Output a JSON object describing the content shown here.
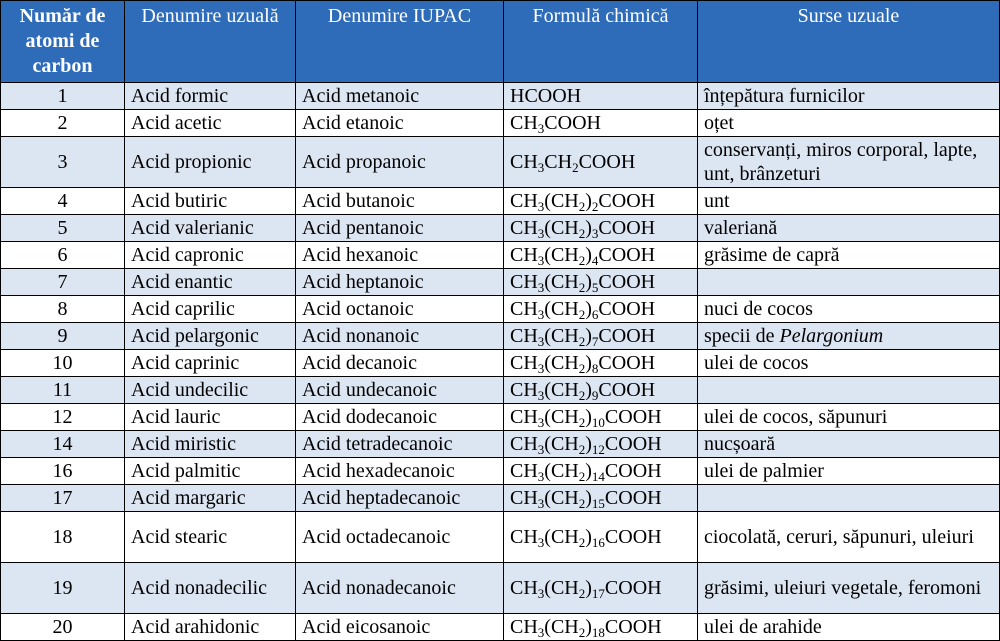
{
  "headers": {
    "carbon": "Număr de atomi de carbon",
    "common_name": "Denumire uzuală",
    "iupac_name": "Denumire IUPAC",
    "formula": "Formulă chimică",
    "sources": "Surse uzuale"
  },
  "rows": [
    {
      "n": "1",
      "common": "Acid formic",
      "iupac": "Acid metanoic",
      "formula": [
        [
          "HCOOH",
          ""
        ]
      ],
      "sources": "înțepătura furnicilor"
    },
    {
      "n": "2",
      "common": "Acid acetic",
      "iupac": "Acid etanoic",
      "formula": [
        [
          "CH",
          "3"
        ],
        [
          "COOH",
          ""
        ]
      ],
      "sources": "oțet"
    },
    {
      "n": "3",
      "common": "Acid propionic",
      "iupac": "Acid propanoic",
      "formula": [
        [
          "CH",
          "3"
        ],
        [
          "CH",
          "2"
        ],
        [
          "COOH",
          ""
        ]
      ],
      "sources": "conservanți, miros corporal, lapte, unt, brânzeturi"
    },
    {
      "n": "4",
      "common": "Acid butiric",
      "iupac": "Acid butanoic",
      "formula": [
        [
          "CH",
          "3"
        ],
        [
          "(CH",
          "2"
        ],
        [
          ")",
          "2"
        ],
        [
          "COOH",
          ""
        ]
      ],
      "sources": "unt"
    },
    {
      "n": "5",
      "common": "Acid valerianic",
      "iupac": "Acid pentanoic",
      "formula": [
        [
          "CH",
          "3"
        ],
        [
          "(CH",
          "2"
        ],
        [
          ")",
          "3"
        ],
        [
          "COOH",
          ""
        ]
      ],
      "sources": "valeriană"
    },
    {
      "n": "6",
      "common": "Acid capronic",
      "iupac": "Acid hexanoic",
      "formula": [
        [
          "CH",
          "3"
        ],
        [
          "(CH",
          "2"
        ],
        [
          ")",
          "4"
        ],
        [
          "COOH",
          ""
        ]
      ],
      "sources": "grăsime de capră"
    },
    {
      "n": "7",
      "common": "Acid enantic",
      "iupac": "Acid heptanoic",
      "formula": [
        [
          "CH",
          "3"
        ],
        [
          "(CH",
          "2"
        ],
        [
          ")",
          "5"
        ],
        [
          "COOH",
          ""
        ]
      ],
      "sources": ""
    },
    {
      "n": "8",
      "common": "Acid caprilic",
      "iupac": "Acid octanoic",
      "formula": [
        [
          "CH",
          "3"
        ],
        [
          "(CH",
          "2"
        ],
        [
          ")",
          "6"
        ],
        [
          "COOH",
          ""
        ]
      ],
      "sources": "nuci de cocos"
    },
    {
      "n": "9",
      "common": "Acid pelargonic",
      "iupac": "Acid nonanoic",
      "formula": [
        [
          "CH",
          "3"
        ],
        [
          "(CH",
          "2"
        ],
        [
          ")",
          "7"
        ],
        [
          "COOH",
          ""
        ]
      ],
      "sources": "specii de ",
      "sources_italic": "Pelargonium"
    },
    {
      "n": "10",
      "common": "Acid caprinic",
      "iupac": "Acid decanoic",
      "formula": [
        [
          "CH",
          "3"
        ],
        [
          "(CH",
          "2"
        ],
        [
          ")",
          "8"
        ],
        [
          "COOH",
          ""
        ]
      ],
      "sources": "ulei de cocos"
    },
    {
      "n": "11",
      "common": "Acid undecilic",
      "iupac": "Acid undecanoic",
      "formula": [
        [
          "CH",
          "3"
        ],
        [
          "(CH",
          "2"
        ],
        [
          ")",
          "9"
        ],
        [
          "COOH",
          ""
        ]
      ],
      "sources": ""
    },
    {
      "n": "12",
      "common": "Acid lauric",
      "iupac": "Acid dodecanoic",
      "formula": [
        [
          "CH",
          "3"
        ],
        [
          "(CH",
          "2"
        ],
        [
          ")",
          "10"
        ],
        [
          "COOH",
          ""
        ]
      ],
      "sources": "ulei de cocos, săpunuri"
    },
    {
      "n": "14",
      "common": "Acid miristic",
      "iupac": "Acid tetradecanoic",
      "formula": [
        [
          "CH",
          "3"
        ],
        [
          "(CH",
          "2"
        ],
        [
          ")",
          "12"
        ],
        [
          "COOH",
          ""
        ]
      ],
      "sources": "nucșoară"
    },
    {
      "n": "16",
      "common": "Acid palmitic",
      "iupac": "Acid hexadecanoic",
      "formula": [
        [
          "CH",
          "3"
        ],
        [
          "(CH",
          "2"
        ],
        [
          ")",
          "14"
        ],
        [
          "COOH",
          ""
        ]
      ],
      "sources": "ulei de palmier"
    },
    {
      "n": "17",
      "common": "Acid margaric",
      "iupac": "Acid heptadecanoic",
      "formula": [
        [
          "CH",
          "3"
        ],
        [
          "(CH",
          "2"
        ],
        [
          ")",
          "15"
        ],
        [
          "COOH",
          ""
        ]
      ],
      "sources": ""
    },
    {
      "n": "18",
      "common": "Acid stearic",
      "iupac": "Acid octadecanoic",
      "formula": [
        [
          "CH",
          "3"
        ],
        [
          "(CH",
          "2"
        ],
        [
          ")",
          "16"
        ],
        [
          "COOH",
          ""
        ]
      ],
      "sources": "ciocolată, ceruri, săpunuri, uleiuri"
    },
    {
      "n": "19",
      "common": "Acid nonadecilic",
      "iupac": "Acid nonadecanoic",
      "formula": [
        [
          "CH",
          "3"
        ],
        [
          "(CH",
          "2"
        ],
        [
          ")",
          "17"
        ],
        [
          "COOH",
          ""
        ]
      ],
      "sources": "grăsimi, uleiuri vegetale, feromoni"
    },
    {
      "n": "20",
      "common": "Acid arahidonic",
      "iupac": "Acid eicosanoic",
      "formula": [
        [
          "CH",
          "3"
        ],
        [
          "(CH",
          "2"
        ],
        [
          ")",
          "18"
        ],
        [
          "COOH",
          ""
        ]
      ],
      "sources": "ulei de arahide"
    }
  ]
}
